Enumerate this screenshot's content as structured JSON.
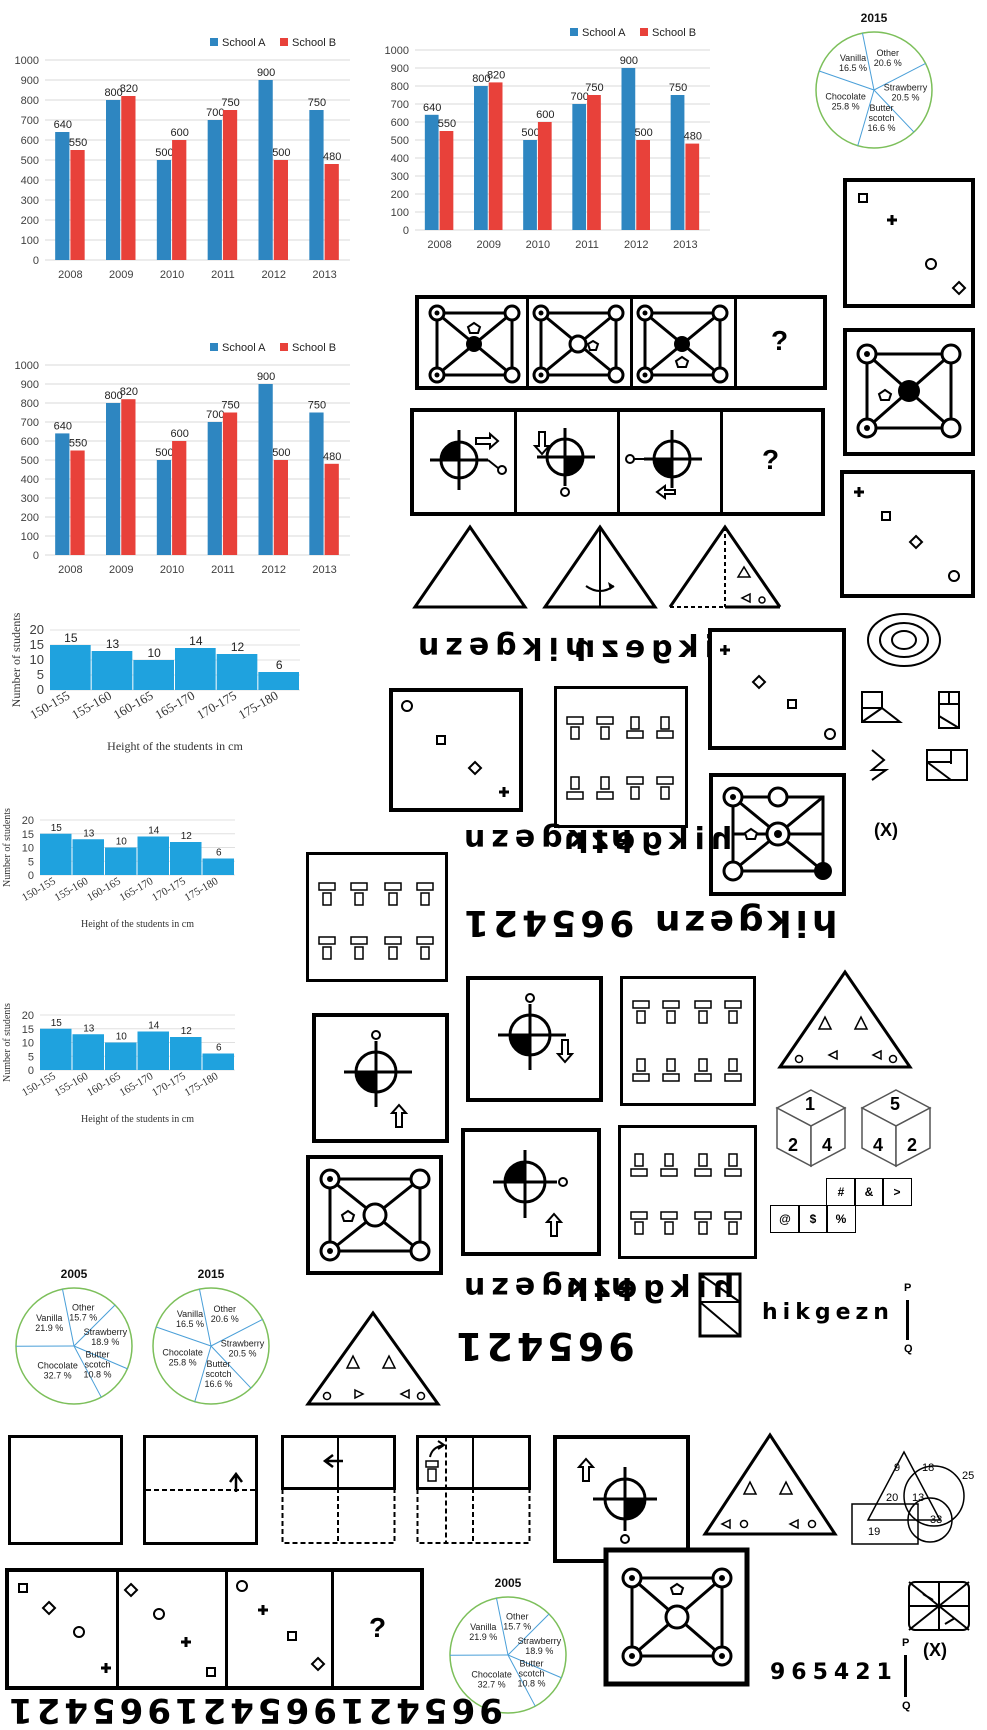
{
  "chart_data": [
    {
      "type": "bar",
      "categories": [
        "2008",
        "2009",
        "2010",
        "2011",
        "2012",
        "2013"
      ],
      "series": [
        {
          "name": "School A",
          "values": [
            640,
            800,
            500,
            700,
            900,
            750
          ]
        },
        {
          "name": "School B",
          "values": [
            550,
            820,
            600,
            750,
            500,
            480
          ]
        }
      ],
      "ylim": [
        0,
        1000
      ],
      "yticks": [
        0,
        100,
        200,
        300,
        400,
        500,
        600,
        700,
        800,
        900,
        1000
      ],
      "legend": "top-right",
      "colors": [
        "#2E86C1",
        "#E8413A"
      ]
    },
    {
      "type": "bar",
      "categories": [
        "2008",
        "2009",
        "2010",
        "2011",
        "2012",
        "2013"
      ],
      "series": [
        {
          "name": "School A",
          "values": [
            640,
            800,
            500,
            700,
            900,
            750
          ]
        },
        {
          "name": "School B",
          "values": [
            550,
            820,
            600,
            750,
            500,
            480
          ]
        }
      ],
      "ylim": [
        0,
        1000
      ],
      "yticks": [
        0,
        100,
        200,
        300,
        400,
        500,
        600,
        700,
        800,
        900,
        1000
      ],
      "legend": "top-right",
      "colors": [
        "#2E86C1",
        "#E8413A"
      ]
    },
    {
      "type": "bar",
      "categories": [
        "2008",
        "2009",
        "2010",
        "2011",
        "2012",
        "2013"
      ],
      "series": [
        {
          "name": "School A",
          "values": [
            640,
            800,
            500,
            700,
            900,
            750
          ]
        },
        {
          "name": "School B",
          "values": [
            550,
            820,
            600,
            750,
            500,
            480
          ]
        }
      ],
      "ylim": [
        0,
        1000
      ],
      "yticks": [
        0,
        100,
        200,
        300,
        400,
        500,
        600,
        700,
        800,
        900,
        1000
      ],
      "legend": "top-right",
      "colors": [
        "#2E86C1",
        "#E8413A"
      ]
    },
    {
      "type": "bar",
      "categories": [
        "150-155",
        "155-160",
        "160-165",
        "165-170",
        "170-175",
        "175-180"
      ],
      "values": [
        15,
        13,
        10,
        14,
        12,
        6
      ],
      "ylim": [
        0,
        20
      ],
      "yticks": [
        0,
        5,
        10,
        15,
        20
      ],
      "xlabel": "Height of the students in cm",
      "ylabel": "Number of students",
      "color": "#1FA2DE"
    },
    {
      "type": "bar",
      "categories": [
        "150-155",
        "155-160",
        "160-165",
        "165-170",
        "170-175",
        "175-180"
      ],
      "values": [
        15,
        13,
        10,
        14,
        12,
        6
      ],
      "ylim": [
        0,
        20
      ],
      "yticks": [
        0,
        5,
        10,
        15,
        20
      ],
      "xlabel": "Height of the students in cm",
      "ylabel": "Number of students",
      "color": "#1FA2DE"
    },
    {
      "type": "bar",
      "categories": [
        "150-155",
        "155-160",
        "160-165",
        "165-170",
        "170-175",
        "175-180"
      ],
      "values": [
        15,
        13,
        10,
        14,
        12,
        6
      ],
      "ylim": [
        0,
        20
      ],
      "yticks": [
        0,
        5,
        10,
        15,
        20
      ],
      "xlabel": "Height of the students in cm",
      "ylabel": "Number of students",
      "color": "#1FA2DE"
    },
    {
      "type": "pie",
      "title": "2015",
      "slices": [
        {
          "label": "Other",
          "value": 20.6,
          "text": "20.6 %"
        },
        {
          "label": "Strawberry",
          "value": 20.5,
          "text": "20.5 %"
        },
        {
          "label": "Butter scotch",
          "value": 16.6,
          "text": "16.6 %"
        },
        {
          "label": "Chocolate",
          "value": 25.8,
          "text": "25.8 %"
        },
        {
          "label": "Vanilla",
          "value": 16.5,
          "text": "16.5 %"
        }
      ]
    },
    {
      "type": "pie",
      "title": "2005",
      "slices": [
        {
          "label": "Other",
          "value": 15.7,
          "text": "15.7 %"
        },
        {
          "label": "Strawberry",
          "value": 18.9,
          "text": "18.9 %"
        },
        {
          "label": "Butter scotch",
          "value": 10.8,
          "text": "10.8 %"
        },
        {
          "label": "Chocolate",
          "value": 32.7,
          "text": "32.7 %"
        },
        {
          "label": "Vanilla",
          "value": 21.9,
          "text": "21.9 %"
        }
      ]
    },
    {
      "type": "pie",
      "title": "2015",
      "slices": [
        {
          "label": "Other",
          "value": 20.6,
          "text": "20.6 %"
        },
        {
          "label": "Strawberry",
          "value": 20.5,
          "text": "20.5 %"
        },
        {
          "label": "Butter scotch",
          "value": 16.6,
          "text": "16.6 %"
        },
        {
          "label": "Chocolate",
          "value": 25.8,
          "text": "25.8 %"
        },
        {
          "label": "Vanilla",
          "value": 16.5,
          "text": "16.5 %"
        }
      ]
    },
    {
      "type": "pie",
      "title": "2005",
      "slices": [
        {
          "label": "Other",
          "value": 15.7,
          "text": "15.7 %"
        },
        {
          "label": "Strawberry",
          "value": 18.9,
          "text": "18.9 %"
        },
        {
          "label": "Butter scotch",
          "value": 10.8,
          "text": "10.8 %"
        },
        {
          "label": "Chocolate",
          "value": 32.7,
          "text": "32.7 %"
        },
        {
          "label": "Vanilla",
          "value": 21.9,
          "text": "21.9 %"
        }
      ]
    }
  ],
  "texts": {
    "word": "hikgezn",
    "digits": "965421",
    "question": "?",
    "x_label": "(X)",
    "p": "P",
    "q": "Q",
    "word_with_digits": "hikgezn 965421"
  },
  "cube1": {
    "top": "1",
    "left": "2",
    "right": "4"
  },
  "cube2": {
    "top": "5",
    "left": "4",
    "right": "2"
  },
  "net": {
    "row1": [
      "#",
      "&",
      ">"
    ],
    "row2": [
      "@",
      "$",
      "%"
    ]
  },
  "venn": {
    "triangle_top": "9",
    "center": "13",
    "circle_top": "18",
    "left": "20",
    "right_circle": "25",
    "bottom_circle": "33",
    "square": "19"
  }
}
